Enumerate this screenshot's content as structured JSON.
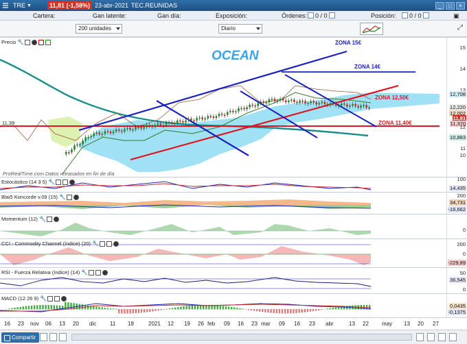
{
  "titlebar": {
    "ticker": "TRE",
    "price_chip": "11,81 (-1,58%)",
    "date": "23-abr-2021",
    "exchange": "TEC.REUNIDAS"
  },
  "infobar": {
    "cartera": "Cartera:",
    "gan_latente": "Gan latente:",
    "gan_dia": "Gan día:",
    "exposicion": "Exposición:",
    "ordenes": "Órdenes:",
    "ordenes_value": "0 / 0",
    "posicion": "Posición:",
    "posicion_value": "0 / 0"
  },
  "controls": {
    "units_select": "200 unidades",
    "period_select": "Diario"
  },
  "price_panel": {
    "title": "Precio",
    "annotation": "OCEAN",
    "zones": [
      "ZONA 15€",
      "ZONA 14€",
      "ZONA 12,50€",
      "ZONA 11,40€"
    ],
    "source_text": "ProRealTime.com  Datos retrasados en fin de día",
    "left_level": "11,39",
    "scale": [
      "15",
      "14",
      "13",
      "12",
      "11",
      "10"
    ],
    "chips": [
      "12,708",
      "12,220",
      "12,002",
      "11,81",
      "11,370",
      "10,883"
    ]
  },
  "stoch_panel": {
    "title": "Estocástico (14 3 5)",
    "scale_top": "100",
    "chip": "14,435"
  },
  "blai_panel": {
    "title": "Blai5 Koncorde v.09 (15)",
    "scale": [
      "200",
      "0",
      "-200"
    ],
    "chips": [
      "34,731",
      "-16,662"
    ]
  },
  "momentum_panel": {
    "title": "Momentum (12)",
    "scale_top": "0"
  },
  "cci_panel": {
    "title": "CCI - Commodity Channel (índice) (20)",
    "scale": [
      "200",
      "0",
      "-200"
    ],
    "chip": "-229,89"
  },
  "rsi_panel": {
    "title": "RSI - Fuerza Relativa (índice) (14)",
    "scale": [
      "50",
      "0"
    ],
    "chip": "36,545"
  },
  "macd_panel": {
    "title": "MACD (12 26 9)",
    "chips": [
      "0,0435",
      "-0,1375"
    ]
  },
  "date_axis": [
    "16",
    "23",
    "nov",
    "06",
    "13",
    "20",
    "dic",
    "11",
    "18",
    "2021",
    "12",
    "19",
    "26",
    "feb",
    "09",
    "16",
    "23",
    "mar",
    "09",
    "16",
    "23",
    "abr",
    "13",
    "22",
    "may",
    "13",
    "20",
    "27"
  ],
  "statusbar": {
    "share_label": "Compartir"
  },
  "colors": {
    "titlebar": "#1e4f82",
    "price_down": "#d62f24",
    "trend_blue": "#1a1fc0",
    "trend_red": "#e0141e",
    "cloud": "#8fdcf5",
    "ma_teal": "#1a8f8a",
    "candle_green": "#1d8a1d"
  }
}
